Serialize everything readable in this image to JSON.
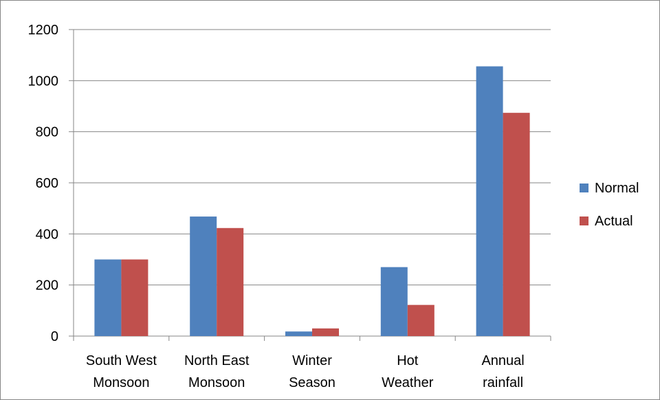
{
  "chart_data": {
    "type": "bar",
    "categories": [
      [
        "South West",
        "Monsoon"
      ],
      [
        "North East",
        "Monsoon"
      ],
      [
        "Winter",
        "Season"
      ],
      [
        "Hot",
        "Weather"
      ],
      [
        "Annual",
        "rainfall"
      ]
    ],
    "series": [
      {
        "name": "Normal",
        "color": "#4F81BD",
        "values": [
          300,
          468,
          18,
          270,
          1056
        ]
      },
      {
        "name": "Actual",
        "color": "#C0504D",
        "values": [
          300,
          423,
          30,
          122,
          874
        ]
      }
    ],
    "ylim": [
      0,
      1200
    ],
    "yticks": [
      0,
      200,
      400,
      600,
      800,
      1000,
      1200
    ],
    "grid": true,
    "legend": "right"
  }
}
